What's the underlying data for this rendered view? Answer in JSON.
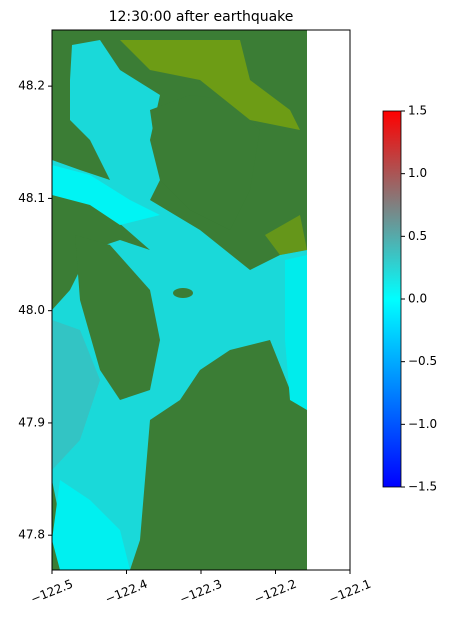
{
  "chart_data": {
    "type": "heatmap",
    "title": "12:30:00 after earthquake",
    "xlim": [
      -122.5,
      -122.1
    ],
    "xticks": [
      {
        "value": -122.5,
        "label": "−122.5"
      },
      {
        "value": -122.4,
        "label": "−122.4"
      },
      {
        "value": -122.3,
        "label": "−122.3"
      },
      {
        "value": -122.2,
        "label": "−122.2"
      },
      {
        "value": -122.1,
        "label": "−122.1"
      }
    ],
    "ylim": [
      47.769,
      48.25
    ],
    "yticks": [
      47.8,
      47.9,
      {
        "value": 48.0,
        "label": "48.0"
      },
      48.1,
      48.2
    ],
    "colorbar_lim": [
      -1.5,
      1.5
    ],
    "colorbar_ticks": [
      {
        "value": -1.5,
        "label": "−1.5"
      },
      {
        "value": -1.0,
        "label": "−1.0"
      },
      {
        "value": -0.5,
        "label": "−0.5"
      },
      {
        "value": 0.0,
        "label": "0.0"
      },
      0.5,
      {
        "value": 1.0,
        "label": "1.0"
      },
      1.5
    ],
    "colormap": [
      "#0000ff",
      "#00ffff",
      "#808080",
      "#ff0000"
    ]
  }
}
